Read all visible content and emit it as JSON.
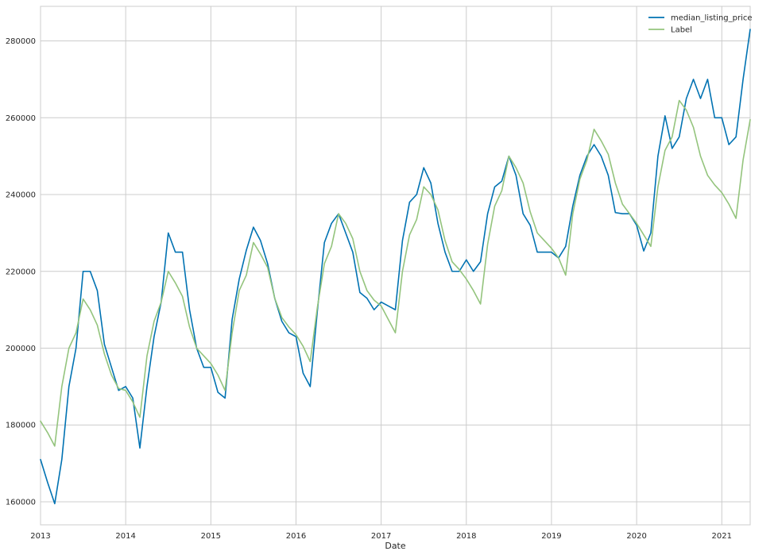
{
  "chart_data": {
    "type": "line",
    "title": "",
    "xlabel": "Date",
    "ylabel": "",
    "x_ticks": [
      "2013",
      "2014",
      "2015",
      "2016",
      "2017",
      "2018",
      "2019",
      "2020",
      "2021"
    ],
    "y_ticks": [
      "160000",
      "180000",
      "200000",
      "220000",
      "240000",
      "260000",
      "280000"
    ],
    "xlim": [
      "2013-01",
      "2021-05"
    ],
    "ylim": [
      154000,
      289000
    ],
    "grid": true,
    "legend_position": "top-right",
    "x": [
      "2013-01",
      "2013-02",
      "2013-03",
      "2013-04",
      "2013-05",
      "2013-06",
      "2013-07",
      "2013-08",
      "2013-09",
      "2013-10",
      "2013-11",
      "2013-12",
      "2014-01",
      "2014-02",
      "2014-03",
      "2014-04",
      "2014-05",
      "2014-06",
      "2014-07",
      "2014-08",
      "2014-09",
      "2014-10",
      "2014-11",
      "2014-12",
      "2015-01",
      "2015-02",
      "2015-03",
      "2015-04",
      "2015-05",
      "2015-06",
      "2015-07",
      "2015-08",
      "2015-09",
      "2015-10",
      "2015-11",
      "2015-12",
      "2016-01",
      "2016-02",
      "2016-03",
      "2016-04",
      "2016-05",
      "2016-06",
      "2016-07",
      "2016-08",
      "2016-09",
      "2016-10",
      "2016-11",
      "2016-12",
      "2017-01",
      "2017-02",
      "2017-03",
      "2017-04",
      "2017-05",
      "2017-06",
      "2017-07",
      "2017-08",
      "2017-09",
      "2017-10",
      "2017-11",
      "2017-12",
      "2018-01",
      "2018-02",
      "2018-03",
      "2018-04",
      "2018-05",
      "2018-06",
      "2018-07",
      "2018-08",
      "2018-09",
      "2018-10",
      "2018-11",
      "2018-12",
      "2019-01",
      "2019-02",
      "2019-03",
      "2019-04",
      "2019-05",
      "2019-06",
      "2019-07",
      "2019-08",
      "2019-09",
      "2019-10",
      "2019-11",
      "2019-12",
      "2020-01",
      "2020-02",
      "2020-03",
      "2020-04",
      "2020-05",
      "2020-06",
      "2020-07",
      "2020-08",
      "2020-09",
      "2020-10",
      "2020-11",
      "2020-12",
      "2021-01",
      "2021-02",
      "2021-03",
      "2021-04",
      "2021-05"
    ],
    "series": [
      {
        "name": "median_listing_price",
        "color": "#0072b2",
        "values": [
          171000,
          165000,
          159500,
          171000,
          190000,
          200000,
          220000,
          220000,
          215000,
          201000,
          195000,
          189000,
          190000,
          187000,
          174000,
          190000,
          203000,
          212000,
          230000,
          225000,
          225000,
          210000,
          200000,
          195000,
          195000,
          188500,
          187000,
          207500,
          218000,
          225500,
          231500,
          228000,
          222000,
          213000,
          207000,
          204000,
          203000,
          193500,
          190000,
          209500,
          227500,
          232500,
          235000,
          230000,
          225000,
          214500,
          213000,
          210000,
          212000,
          211000,
          210000,
          228000,
          238000,
          240000,
          247000,
          243000,
          232500,
          225000,
          220000,
          220000,
          223000,
          220000,
          222500,
          235000,
          242000,
          243500,
          250000,
          245000,
          235000,
          232000,
          225000,
          225000,
          225000,
          223500,
          226500,
          237000,
          245000,
          250000,
          253000,
          250000,
          245000,
          235300,
          235000,
          235000,
          232000,
          225300,
          230000,
          250000,
          260500,
          252000,
          255000,
          265000,
          270000,
          265000,
          270000,
          260000,
          260000,
          253000,
          255000,
          270000,
          283000
        ]
      },
      {
        "name": "Label",
        "color": "#94c47d",
        "values": [
          181000,
          178000,
          174500,
          190000,
          200000,
          204000,
          212800,
          210000,
          206000,
          198500,
          193000,
          189500,
          189000,
          186000,
          182000,
          198000,
          207000,
          212000,
          220000,
          217000,
          213500,
          205500,
          200000,
          198000,
          196000,
          193000,
          189000,
          204000,
          215000,
          219000,
          227500,
          224500,
          221000,
          213000,
          208000,
          205500,
          203500,
          200500,
          196500,
          210500,
          222000,
          226500,
          235000,
          232500,
          228500,
          220000,
          215000,
          212500,
          211000,
          207500,
          204000,
          220000,
          229500,
          233500,
          242000,
          240000,
          236000,
          228000,
          222500,
          220500,
          218000,
          215000,
          211500,
          227000,
          237000,
          241000,
          250000,
          247000,
          243000,
          235500,
          230000,
          228000,
          226000,
          223500,
          219000,
          235000,
          244000,
          249000,
          257000,
          254000,
          250500,
          243000,
          237500,
          235000,
          232500,
          229500,
          226500,
          242000,
          251500,
          255000,
          264500,
          262000,
          257500,
          250000,
          245000,
          242500,
          240500,
          237500,
          233800,
          249000,
          259500
        ]
      }
    ]
  }
}
